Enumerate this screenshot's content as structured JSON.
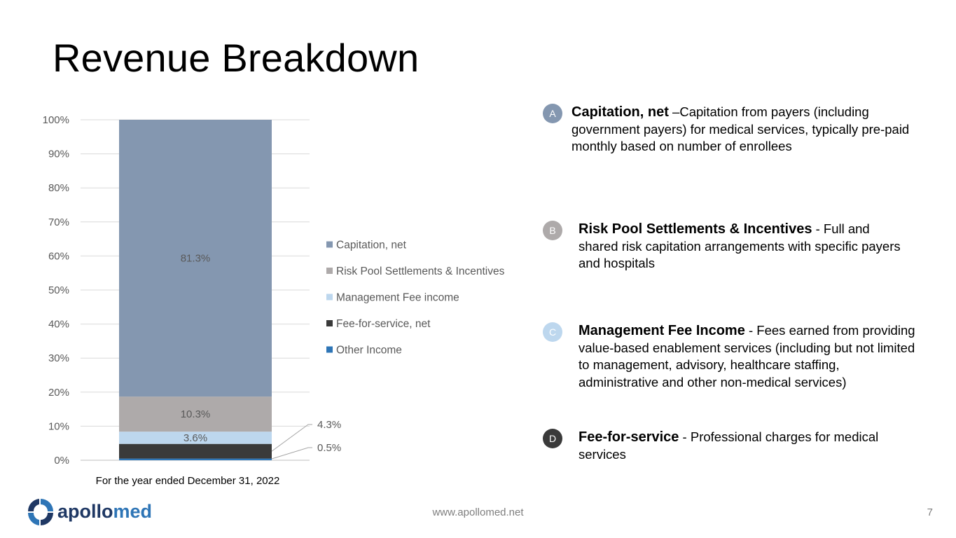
{
  "title": "Revenue Breakdown",
  "chart_data": {
    "type": "bar",
    "stacked": true,
    "percent_axis": true,
    "categories": [
      "For the year ended December 31, 2022"
    ],
    "ylim": [
      0,
      100
    ],
    "yticks": [
      "0%",
      "10%",
      "20%",
      "30%",
      "40%",
      "50%",
      "60%",
      "70%",
      "80%",
      "90%",
      "100%"
    ],
    "grid": true,
    "legend_position": "right",
    "series": [
      {
        "name": "Other Income",
        "values": [
          0.5
        ],
        "color": "#2e75b6",
        "label": "0.5%"
      },
      {
        "name": "Fee-for-service, net",
        "values": [
          4.3
        ],
        "color": "#3a3a3a",
        "label": "4.3%"
      },
      {
        "name": "Management Fee income",
        "values": [
          3.6
        ],
        "color": "#bdd7ee",
        "label": "3.6%"
      },
      {
        "name": "Risk Pool Settlements & Incentives",
        "values": [
          10.3
        ],
        "color": "#aeaaaa",
        "label": "10.3%"
      },
      {
        "name": "Capitation, net",
        "values": [
          81.3
        ],
        "color": "#8497b0",
        "label": "81.3%"
      }
    ],
    "legend_order": [
      "Capitation, net",
      "Risk Pool Settlements & Incentives",
      "Management Fee income",
      "Fee-for-service, net",
      "Other Income"
    ]
  },
  "descriptions": [
    {
      "badge": "A",
      "badge_color": "#8497b0",
      "heading": "Capitation, net",
      "separator": " –",
      "text": "Capitation from payers (including government payers) for medical services, typically pre-paid monthly based on number of enrollees"
    },
    {
      "badge": "B",
      "badge_color": "#aeaaaa",
      "heading": "Risk Pool Settlements & Incentives",
      "separator": " - ",
      "text": "Full and shared risk capitation arrangements with specific payers and hospitals"
    },
    {
      "badge": "C",
      "badge_color": "#bdd7ee",
      "heading": "Management Fee Income",
      "separator": " - ",
      "text": "Fees earned from providing value-based enablement services (including but not limited to management, advisory, healthcare staffing, administrative and other non-medical services)"
    },
    {
      "badge": "D",
      "badge_color": "#3a3a3a",
      "heading": "Fee-for-service",
      "separator": " - ",
      "text": "Professional charges for medical services"
    }
  ],
  "footer": {
    "url": "www.apollomed.net",
    "page_number": "7",
    "logo_text_a": "apollo",
    "logo_text_b": "med"
  }
}
